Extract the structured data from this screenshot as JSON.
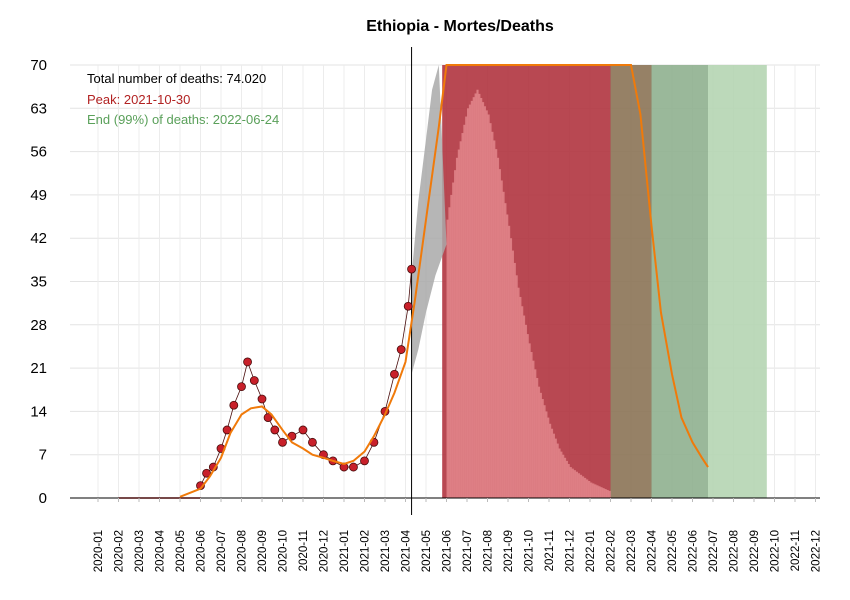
{
  "chart_data": {
    "type": "line",
    "title": "Ethiopia - Mortes/Deaths",
    "xlabel": "",
    "ylabel": "",
    "ylim": [
      0,
      70
    ],
    "y_ticks": [
      "0",
      "7",
      "14",
      "21",
      "28",
      "35",
      "42",
      "49",
      "56",
      "63",
      "70"
    ],
    "x_range": [
      "2020-01",
      "2022-12"
    ],
    "x_ticks": [
      "2020-01",
      "2020-02",
      "2020-03",
      "2020-04",
      "2020-05",
      "2020-06",
      "2020-07",
      "2020-08",
      "2020-09",
      "2020-10",
      "2020-11",
      "2020-12",
      "2021-01",
      "2021-02",
      "2021-03",
      "2021-04",
      "2021-05",
      "2021-06",
      "2021-07",
      "2021-08",
      "2021-09",
      "2021-10",
      "2021-11",
      "2021-12",
      "2022-01",
      "2022-02",
      "2022-03",
      "2022-04",
      "2022-05",
      "2022-06",
      "2022-07",
      "2022-08",
      "2022-09",
      "2022-10",
      "2022-11",
      "2022-12"
    ],
    "grid": true,
    "annotations": [
      {
        "text": "Total number of deaths: 74.020",
        "color": "#000000"
      },
      {
        "text": "Peak: 2021-10-30",
        "color": "#b22222"
      },
      {
        "text": "End (99%) of deaths: 2022-06-24",
        "color": "#5aa05a"
      }
    ],
    "current_date": "2021-04-10",
    "observed_daily_deaths": [
      [
        "2020-06-01",
        2
      ],
      [
        "2020-06-10",
        4
      ],
      [
        "2020-06-20",
        5
      ],
      [
        "2020-07-01",
        8
      ],
      [
        "2020-07-10",
        11
      ],
      [
        "2020-07-20",
        15
      ],
      [
        "2020-08-01",
        18
      ],
      [
        "2020-08-10",
        22
      ],
      [
        "2020-08-20",
        19
      ],
      [
        "2020-09-01",
        16
      ],
      [
        "2020-09-10",
        13
      ],
      [
        "2020-09-20",
        11
      ],
      [
        "2020-10-01",
        9
      ],
      [
        "2020-10-15",
        10
      ],
      [
        "2020-11-01",
        11
      ],
      [
        "2020-11-15",
        9
      ],
      [
        "2020-12-01",
        7
      ],
      [
        "2020-12-15",
        6
      ],
      [
        "2021-01-01",
        5
      ],
      [
        "2021-01-15",
        5
      ],
      [
        "2021-02-01",
        6
      ],
      [
        "2021-02-15",
        9
      ],
      [
        "2021-03-01",
        14
      ],
      [
        "2021-03-15",
        20
      ],
      [
        "2021-03-25",
        24
      ],
      [
        "2021-04-05",
        31
      ],
      [
        "2021-04-10",
        37
      ]
    ],
    "fitted_curve": [
      [
        "2020-05-01",
        0.2
      ],
      [
        "2020-06-01",
        1.5
      ],
      [
        "2020-06-15",
        3.5
      ],
      [
        "2020-07-01",
        6.5
      ],
      [
        "2020-07-15",
        10.5
      ],
      [
        "2020-08-01",
        13.5
      ],
      [
        "2020-08-15",
        14.5
      ],
      [
        "2020-09-01",
        14.8
      ],
      [
        "2020-09-15",
        13.5
      ],
      [
        "2020-10-01",
        11
      ],
      [
        "2020-10-15",
        9
      ],
      [
        "2020-11-01",
        8
      ],
      [
        "2020-11-15",
        7
      ],
      [
        "2020-12-01",
        6.5
      ],
      [
        "2020-12-15",
        6
      ],
      [
        "2021-01-01",
        5.5
      ],
      [
        "2021-01-15",
        6
      ],
      [
        "2021-02-01",
        7.5
      ],
      [
        "2021-02-15",
        10
      ],
      [
        "2021-03-01",
        13.5
      ],
      [
        "2021-03-15",
        17
      ],
      [
        "2021-04-01",
        22
      ],
      [
        "2021-04-15",
        32
      ],
      [
        "2021-05-01",
        45
      ],
      [
        "2021-05-20",
        60
      ],
      [
        "2021-06-01",
        70
      ],
      [
        "2022-03-01",
        70
      ],
      [
        "2022-03-15",
        62
      ],
      [
        "2022-04-01",
        44
      ],
      [
        "2022-04-15",
        30
      ],
      [
        "2022-05-01",
        20
      ],
      [
        "2022-05-15",
        13
      ],
      [
        "2022-06-01",
        9
      ],
      [
        "2022-06-15",
        6.5
      ],
      [
        "2022-06-24",
        5
      ]
    ],
    "projection_center": [
      [
        "2021-06-01",
        45
      ],
      [
        "2021-06-15",
        55
      ],
      [
        "2021-07-01",
        63
      ],
      [
        "2021-07-15",
        66
      ],
      [
        "2021-08-01",
        62
      ],
      [
        "2021-08-15",
        55
      ],
      [
        "2021-09-01",
        44
      ],
      [
        "2021-09-15",
        34
      ],
      [
        "2021-10-01",
        25
      ],
      [
        "2021-10-15",
        18
      ],
      [
        "2021-11-01",
        12
      ],
      [
        "2021-11-15",
        8
      ],
      [
        "2021-12-01",
        5
      ],
      [
        "2022-01-01",
        2.5
      ],
      [
        "2022-02-01",
        1
      ]
    ],
    "projection_lower_band": [
      [
        "2021-04-10",
        20
      ],
      [
        "2021-04-20",
        24
      ],
      [
        "2021-05-01",
        30
      ],
      [
        "2021-05-15",
        36
      ],
      [
        "2021-06-01",
        41
      ]
    ],
    "projection_upper_band": [
      [
        "2021-04-10",
        36
      ],
      [
        "2021-04-20",
        48
      ],
      [
        "2021-05-01",
        58
      ],
      [
        "2021-05-10",
        66
      ],
      [
        "2021-05-20",
        70
      ]
    ],
    "shaded_regions": [
      {
        "from": "2021-05-25",
        "to": "2022-02-01",
        "color": "#b0343f"
      },
      {
        "from": "2022-02-01",
        "to": "2022-04-01",
        "color": "#8b7355"
      },
      {
        "from": "2022-04-01",
        "to": "2022-06-24",
        "color": "#8fb08f"
      },
      {
        "from": "2022-06-24",
        "to": "2022-09-20",
        "color": "#b5d5b3"
      }
    ],
    "colors": {
      "points": "#c8202a",
      "point_outline": "#4a0d0d",
      "fit_line": "#f07a0a",
      "band": "#a9a9a9"
    }
  }
}
